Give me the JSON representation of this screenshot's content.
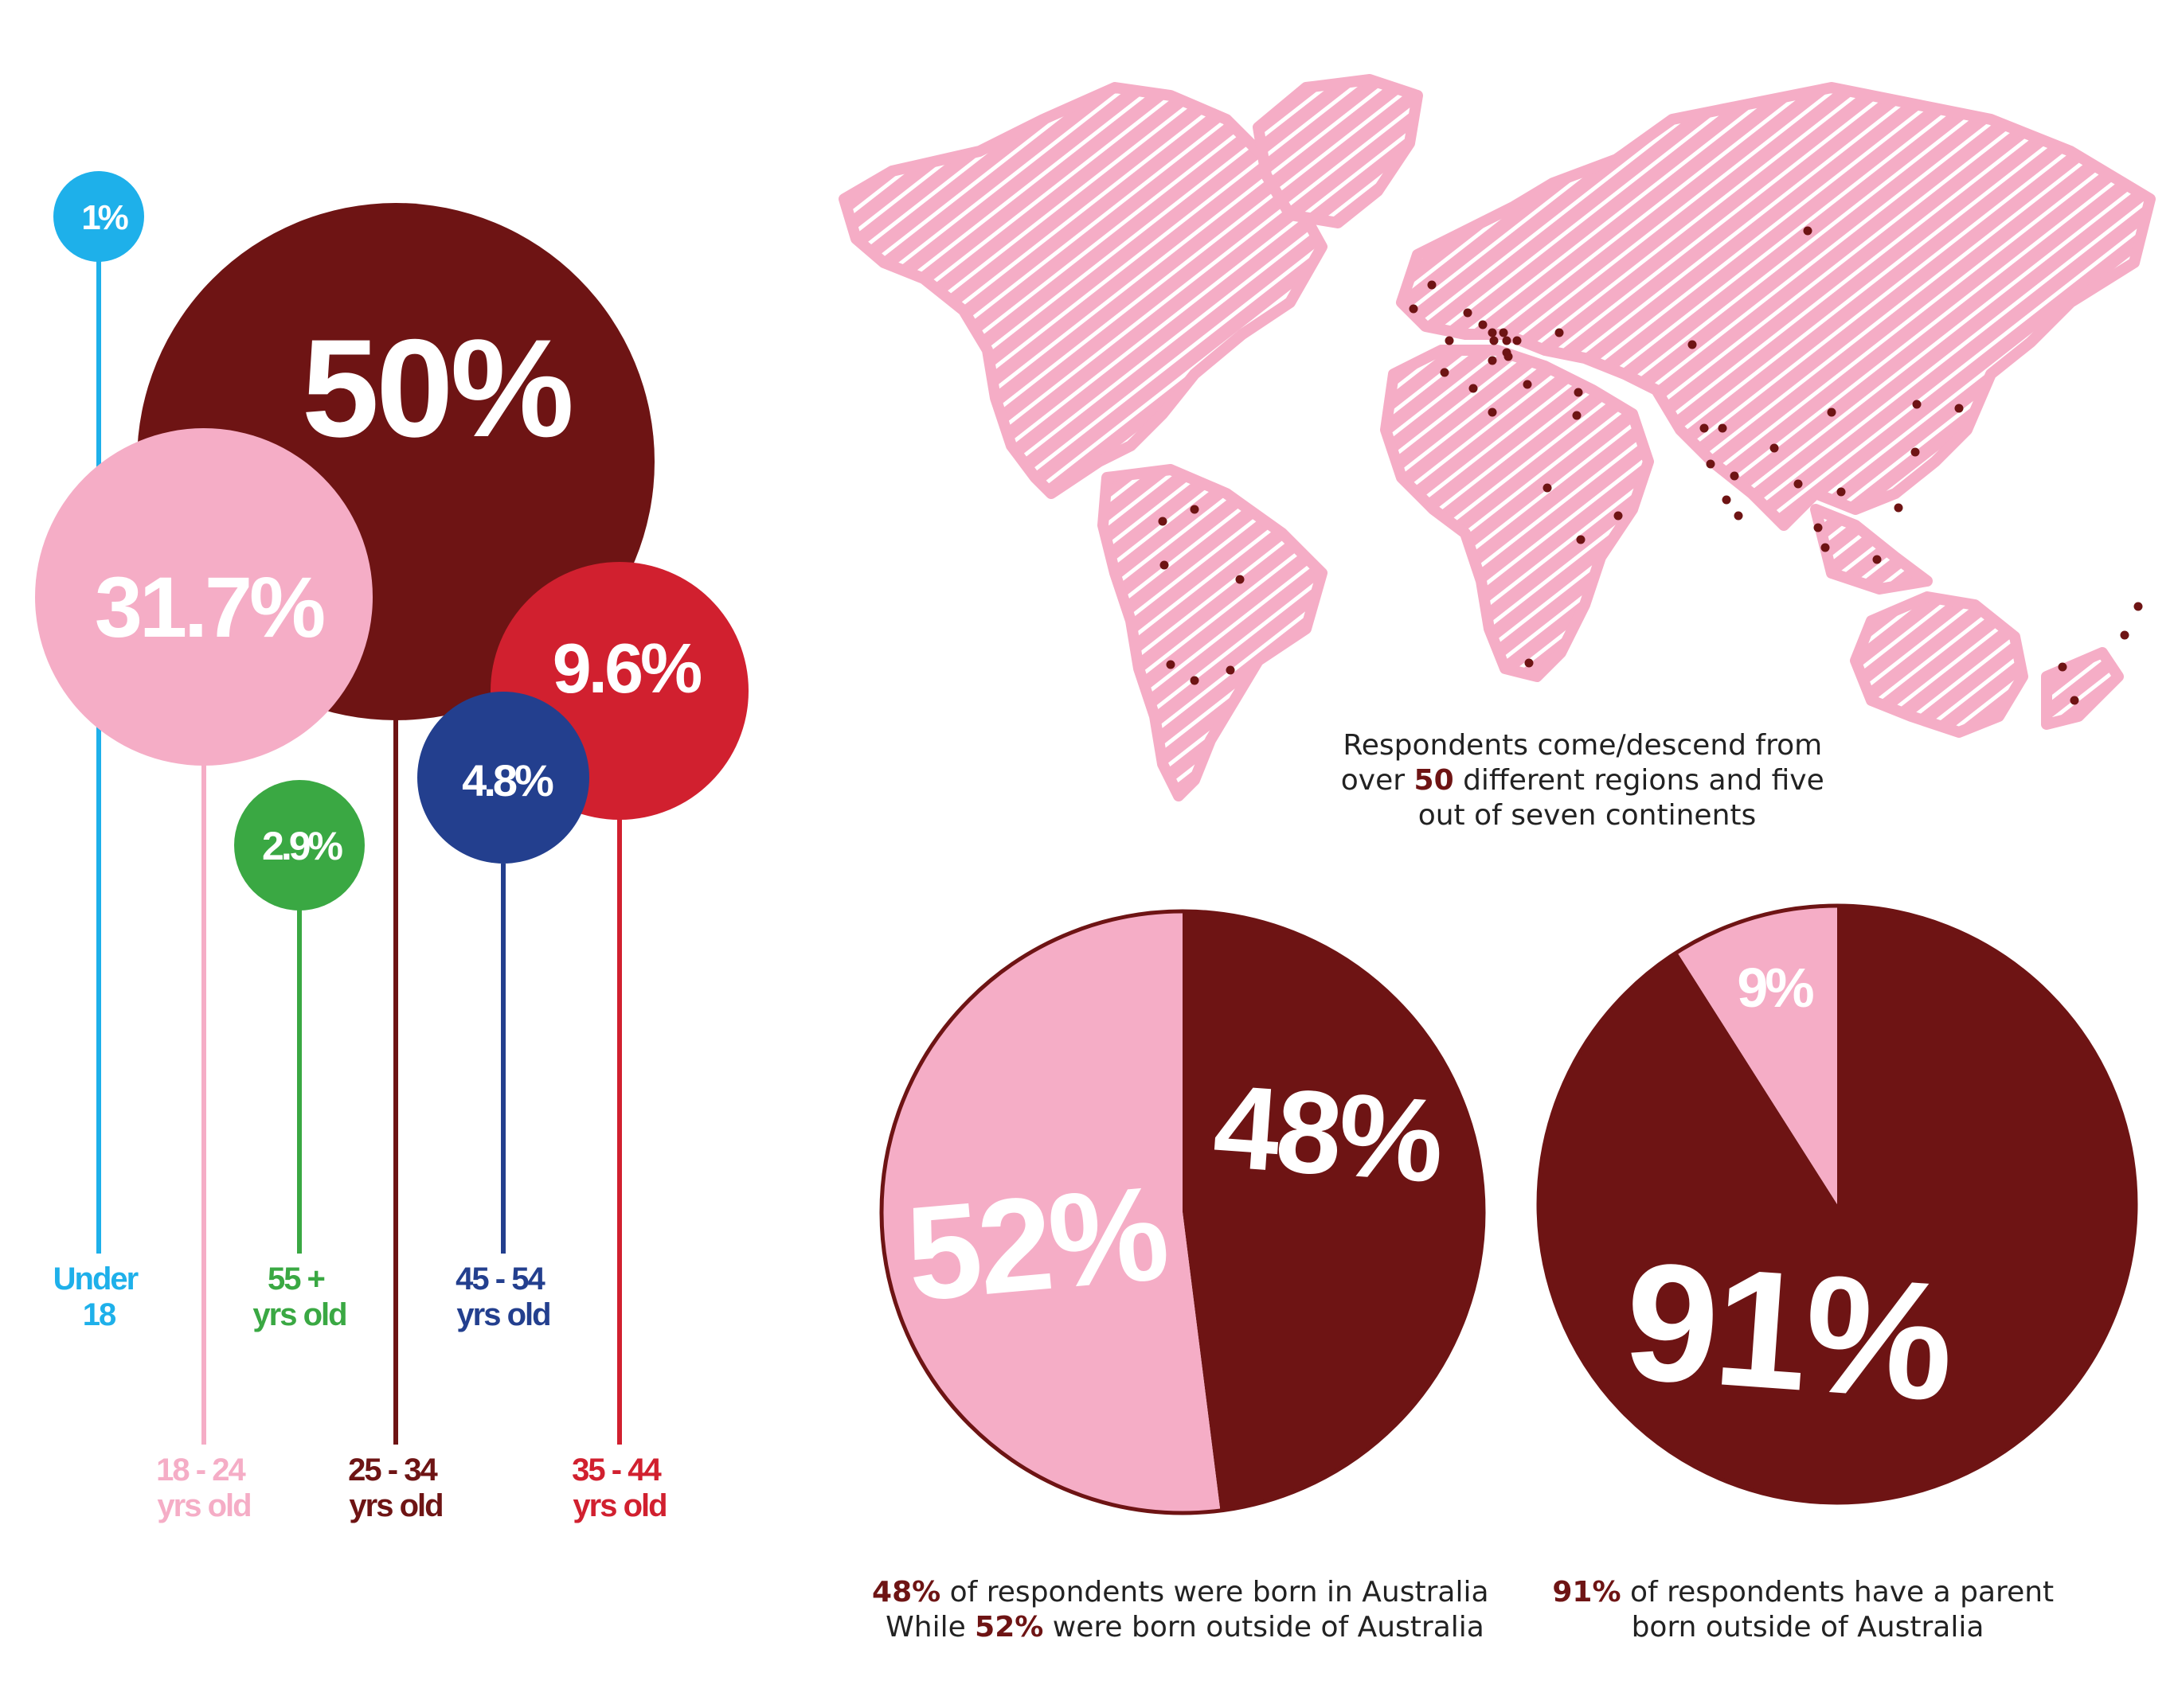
{
  "colors": {
    "maroon": "#6e1414",
    "pink": "#f5adc6",
    "cyan": "#1eb0ea",
    "green": "#3aa843",
    "navy": "#233f8e",
    "red": "#d1202f",
    "map_pink": "#f5adc6",
    "dot": "#6e1414"
  },
  "chart_data": [
    {
      "type": "bubble",
      "categories": [
        "Under 18",
        "18 - 24 yrs old",
        "25 - 34 yrs old",
        "35 - 44 yrs old",
        "45 - 54 yrs old",
        "55 + yrs old"
      ],
      "values": [
        1,
        31.7,
        50,
        9.6,
        4.8,
        2.9
      ],
      "unit": "%",
      "items": [
        {
          "value_label": "1%",
          "age_line1": "Under",
          "age_line2": "18",
          "color": "#1eb0ea"
        },
        {
          "value_label": "31.7%",
          "age_line1": "18 - 24",
          "age_line2": "yrs old",
          "color": "#f5adc6"
        },
        {
          "value_label": "50%",
          "age_line1": "25 - 34",
          "age_line2": "yrs old",
          "color": "#6e1414"
        },
        {
          "value_label": "9.6%",
          "age_line1": "35 - 44",
          "age_line2": "yrs old",
          "color": "#d1202f"
        },
        {
          "value_label": "4.8%",
          "age_line1": "45 - 54",
          "age_line2": "yrs old",
          "color": "#233f8e"
        },
        {
          "value_label": "2.9%",
          "age_line1": "55 +",
          "age_line2": "yrs old",
          "color": "#3aa843"
        }
      ]
    },
    {
      "type": "pie",
      "slices": [
        {
          "value": 48,
          "label": "48%",
          "color": "#6e1414"
        },
        {
          "value": 52,
          "label": "52%",
          "color": "#f5adc6"
        }
      ]
    },
    {
      "type": "pie",
      "slices": [
        {
          "value": 91,
          "label": "91%",
          "color": "#6e1414"
        },
        {
          "value": 9,
          "label": "9%",
          "color": "#f5adc6"
        }
      ]
    }
  ],
  "captions": {
    "map": {
      "line1": "Respondents come/descend from",
      "line2_pre": "over ",
      "line2_bold": "50",
      "line2_post": " different regions and five",
      "line3": "out of seven continents"
    },
    "pie1": {
      "line1_bold": "48%",
      "line1_rest": " of respondents were born in Australia",
      "line2_pre": "While ",
      "line2_bold": "52%",
      "line2_post": " were born outside of Australia"
    },
    "pie2": {
      "line1_bold": "91%",
      "line1_rest": " of respondents have a parent",
      "line2": "born outside of Australia"
    }
  }
}
